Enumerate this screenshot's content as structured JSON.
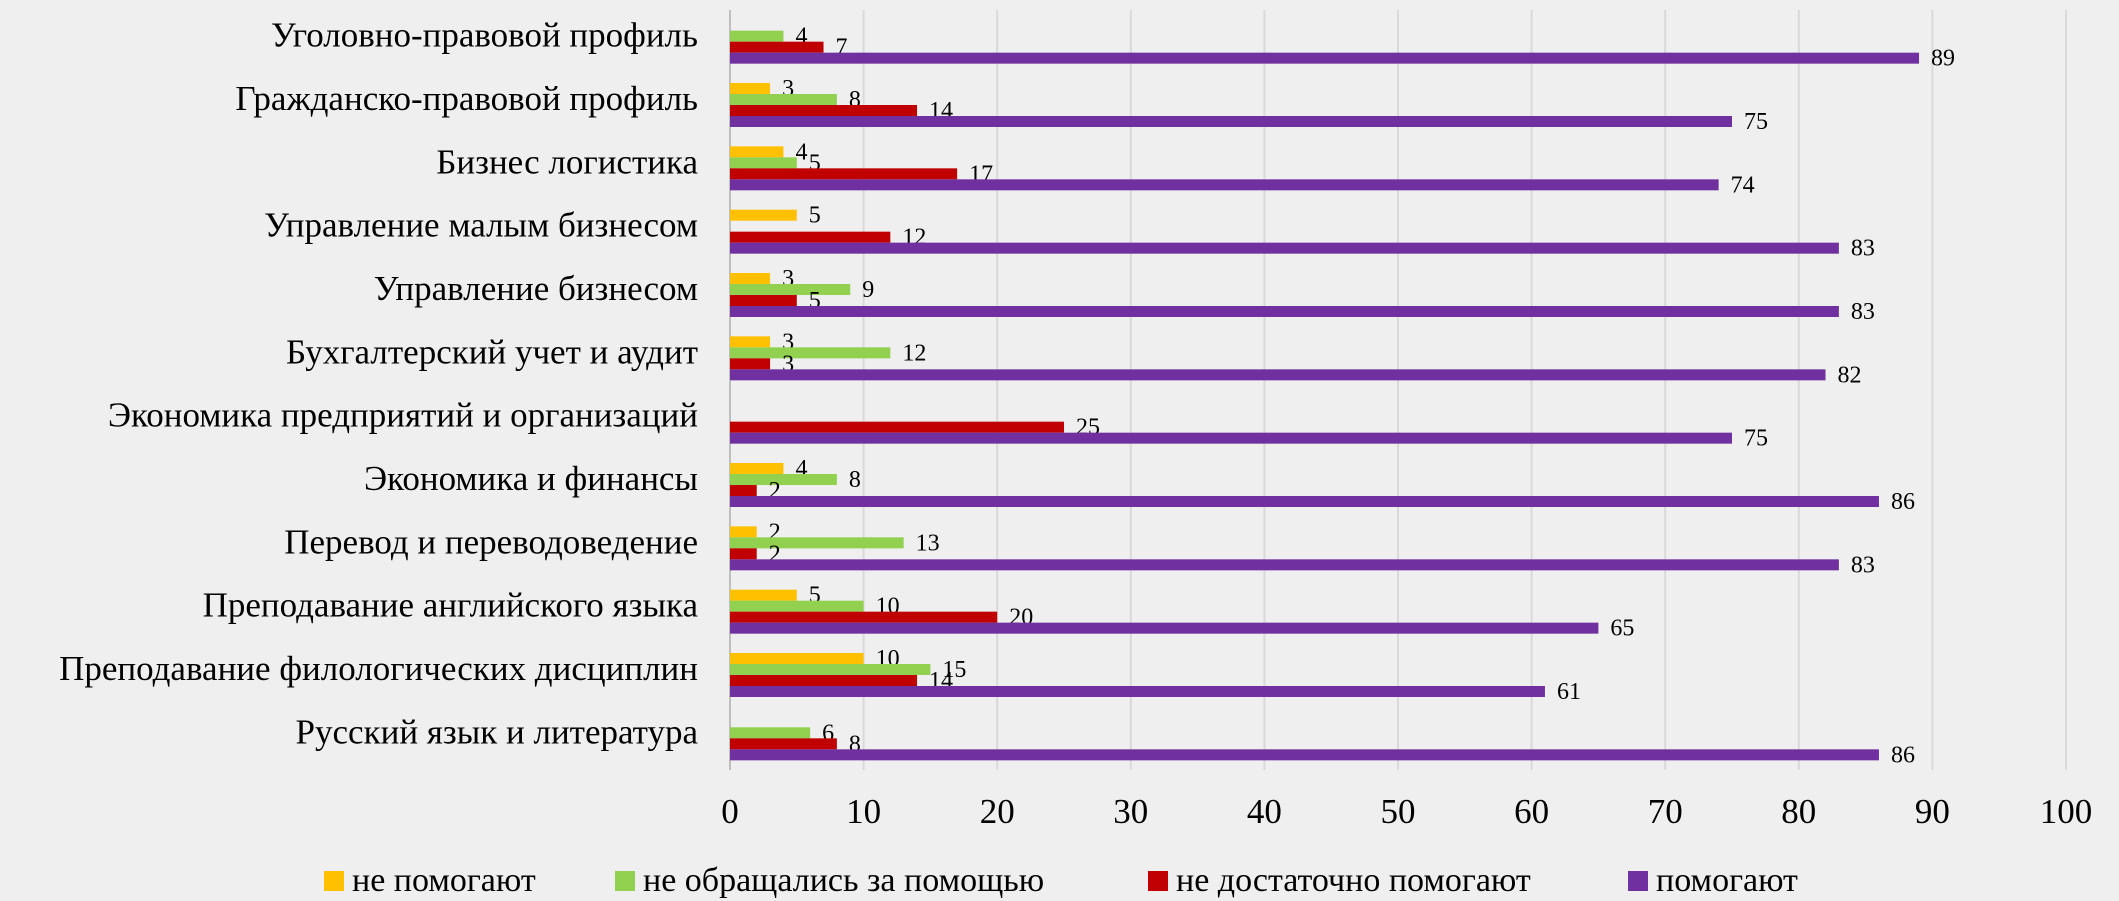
{
  "chart_data": {
    "type": "barh",
    "categories": [
      "Уголовно-правовой профиль",
      "Гражданско-правовой профиль",
      "Бизнес логистика",
      "Управление малым бизнесом",
      "Управление бизнесом",
      "Бухгалтерский учет и аудит",
      "Экономика предприятий и организаций",
      "Экономика и финансы",
      "Перевод и переводоведение",
      "Преподавание английского языка",
      "Преподавание филологических дисциплин",
      "Русский язык и литература"
    ],
    "series": [
      {
        "name": "не помогают",
        "color": "#ffc000",
        "values": [
          null,
          3,
          4,
          5,
          3,
          3,
          null,
          4,
          2,
          5,
          10,
          null
        ]
      },
      {
        "name": "не обращались за помощью",
        "color": "#92d050",
        "values": [
          4,
          8,
          5,
          null,
          9,
          12,
          null,
          8,
          13,
          10,
          15,
          6
        ]
      },
      {
        "name": "не достаточно помогают",
        "color": "#c00000",
        "values": [
          7,
          14,
          17,
          12,
          5,
          3,
          25,
          2,
          2,
          20,
          14,
          8
        ]
      },
      {
        "name": "помогают",
        "color": "#7030a0",
        "values": [
          89,
          75,
          74,
          83,
          83,
          82,
          75,
          86,
          83,
          65,
          61,
          86
        ]
      }
    ],
    "xlim": [
      0,
      100
    ],
    "xticks": [
      0,
      10,
      20,
      30,
      40,
      50,
      60,
      70,
      80,
      90,
      100
    ],
    "grid": true,
    "legend": "bottom"
  }
}
